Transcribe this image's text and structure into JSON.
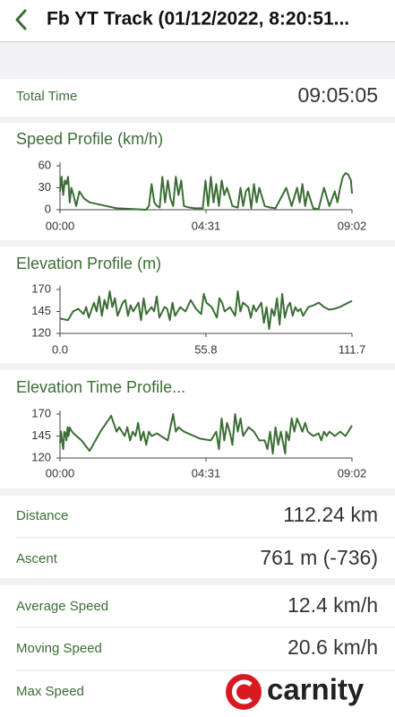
{
  "header": {
    "title": "Fb YT Track (01/12/2022, 8:20:51..."
  },
  "total_time": {
    "label": "Total Time",
    "value": "09:05:05"
  },
  "chart_data": [
    {
      "type": "line",
      "title": "Speed Profile (km/h)",
      "color": "#3b6e35",
      "xlim": [
        0,
        542
      ],
      "xticks": [
        {
          "value": 0,
          "label": "00:00"
        },
        {
          "value": 271,
          "label": "04:31"
        },
        {
          "value": 542,
          "label": "09:02"
        }
      ],
      "ylim": [
        0,
        60
      ],
      "yticks": [
        0,
        30,
        60
      ],
      "x": [
        0,
        3,
        6,
        9,
        12,
        15,
        18,
        21,
        25,
        30,
        36,
        45,
        55,
        105,
        160,
        165,
        170,
        175,
        180,
        185,
        190,
        195,
        200,
        205,
        210,
        215,
        220,
        225,
        230,
        240,
        250,
        265,
        270,
        275,
        280,
        285,
        290,
        295,
        300,
        305,
        310,
        320,
        330,
        335,
        340,
        345,
        350,
        355,
        360,
        365,
        370,
        380,
        390,
        400,
        420,
        430,
        440,
        445,
        450,
        455,
        460,
        470,
        480,
        490,
        500,
        510,
        515,
        520,
        525,
        530,
        535,
        540,
        542
      ],
      "values": [
        25,
        45,
        20,
        40,
        35,
        45,
        10,
        30,
        20,
        5,
        25,
        15,
        10,
        2,
        0,
        5,
        35,
        10,
        5,
        3,
        45,
        10,
        40,
        15,
        5,
        45,
        20,
        40,
        5,
        3,
        2,
        2,
        40,
        5,
        45,
        10,
        35,
        5,
        40,
        20,
        30,
        5,
        3,
        30,
        5,
        25,
        30,
        2,
        35,
        10,
        30,
        5,
        3,
        2,
        30,
        5,
        30,
        10,
        35,
        5,
        25,
        2,
        1,
        30,
        5,
        25,
        10,
        30,
        45,
        50,
        48,
        40,
        22
      ]
    },
    {
      "type": "line",
      "title": "Elevation Profile (m)",
      "color": "#3b6e35",
      "xlim": [
        0,
        111.7
      ],
      "xticks": [
        {
          "value": 0,
          "label": "0.0"
        },
        55.8,
        111.7
      ],
      "ylim": [
        120,
        170
      ],
      "yticks": [
        120,
        145,
        170
      ],
      "x": [
        0,
        1.5,
        3,
        5,
        7,
        9,
        10,
        11,
        13,
        14,
        15,
        16,
        17,
        18,
        19,
        20,
        21,
        22,
        24,
        25,
        26,
        27,
        28,
        30,
        31,
        32,
        33,
        35,
        36,
        37,
        38,
        40,
        41,
        42,
        43,
        44,
        46,
        48,
        50,
        52,
        54,
        55,
        56,
        58,
        60,
        61,
        62,
        63,
        65,
        67,
        68,
        69,
        70,
        72,
        73,
        74,
        75,
        77,
        78,
        79,
        80,
        81,
        82,
        83,
        84,
        85,
        86,
        87,
        88,
        89,
        90,
        91,
        92,
        93,
        95,
        97,
        99,
        101,
        103,
        105,
        107,
        109,
        111.7
      ],
      "values": [
        137,
        136,
        135,
        145,
        148,
        142,
        150,
        138,
        155,
        145,
        162,
        140,
        158,
        148,
        168,
        150,
        160,
        140,
        155,
        158,
        140,
        152,
        145,
        155,
        135,
        160,
        142,
        150,
        145,
        162,
        138,
        150,
        148,
        135,
        155,
        140,
        150,
        145,
        158,
        148,
        142,
        165,
        155,
        150,
        138,
        160,
        155,
        145,
        150,
        140,
        168,
        145,
        155,
        150,
        138,
        152,
        145,
        155,
        132,
        150,
        125,
        148,
        140,
        160,
        130,
        165,
        138,
        150,
        155,
        140,
        150,
        145,
        148,
        140,
        150,
        152,
        155,
        150,
        147,
        148,
        150,
        153,
        157
      ]
    },
    {
      "type": "line",
      "title": "Elevation Time Profile...",
      "color": "#3b6e35",
      "xlim": [
        0,
        542
      ],
      "xticks": [
        {
          "value": 0,
          "label": "00:00"
        },
        {
          "value": 271,
          "label": "04:31"
        },
        {
          "value": 542,
          "label": "09:02"
        }
      ],
      "ylim": [
        120,
        170
      ],
      "yticks": [
        120,
        145,
        170
      ],
      "x": [
        0,
        2,
        4,
        6,
        8,
        10,
        12,
        14,
        16,
        18,
        20,
        25,
        40,
        55,
        75,
        95,
        105,
        110,
        115,
        120,
        125,
        130,
        135,
        140,
        145,
        150,
        155,
        160,
        165,
        170,
        180,
        200,
        210,
        215,
        220,
        230,
        260,
        280,
        290,
        295,
        300,
        305,
        310,
        315,
        320,
        325,
        330,
        335,
        340,
        350,
        360,
        370,
        380,
        385,
        390,
        395,
        400,
        405,
        410,
        418,
        420,
        425,
        430,
        435,
        440,
        450,
        455,
        460,
        470,
        480,
        485,
        490,
        495,
        500,
        510,
        520,
        530,
        540,
        542
      ],
      "values": [
        137,
        150,
        138,
        130,
        150,
        148,
        140,
        155,
        145,
        155,
        152,
        148,
        140,
        128,
        150,
        168,
        150,
        155,
        150,
        145,
        155,
        140,
        150,
        145,
        160,
        140,
        150,
        135,
        150,
        145,
        148,
        140,
        170,
        150,
        155,
        150,
        142,
        140,
        150,
        130,
        165,
        140,
        160,
        150,
        135,
        170,
        150,
        165,
        145,
        155,
        150,
        140,
        140,
        130,
        150,
        125,
        155,
        135,
        150,
        125,
        150,
        140,
        165,
        150,
        165,
        150,
        160,
        150,
        145,
        148,
        140,
        150,
        145,
        150,
        145,
        150,
        145,
        155,
        157
      ]
    }
  ],
  "stats": [
    [
      {
        "label": "Distance",
        "value": "112.24 km"
      },
      {
        "label": "Ascent",
        "value": "761 m (-736)"
      }
    ],
    [
      {
        "label": "Average Speed",
        "value": "12.4 km/h"
      },
      {
        "label": "Moving Speed",
        "value": "20.6 km/h"
      },
      {
        "label": "Max Speed"
      }
    ]
  ],
  "watermark": "carnity"
}
